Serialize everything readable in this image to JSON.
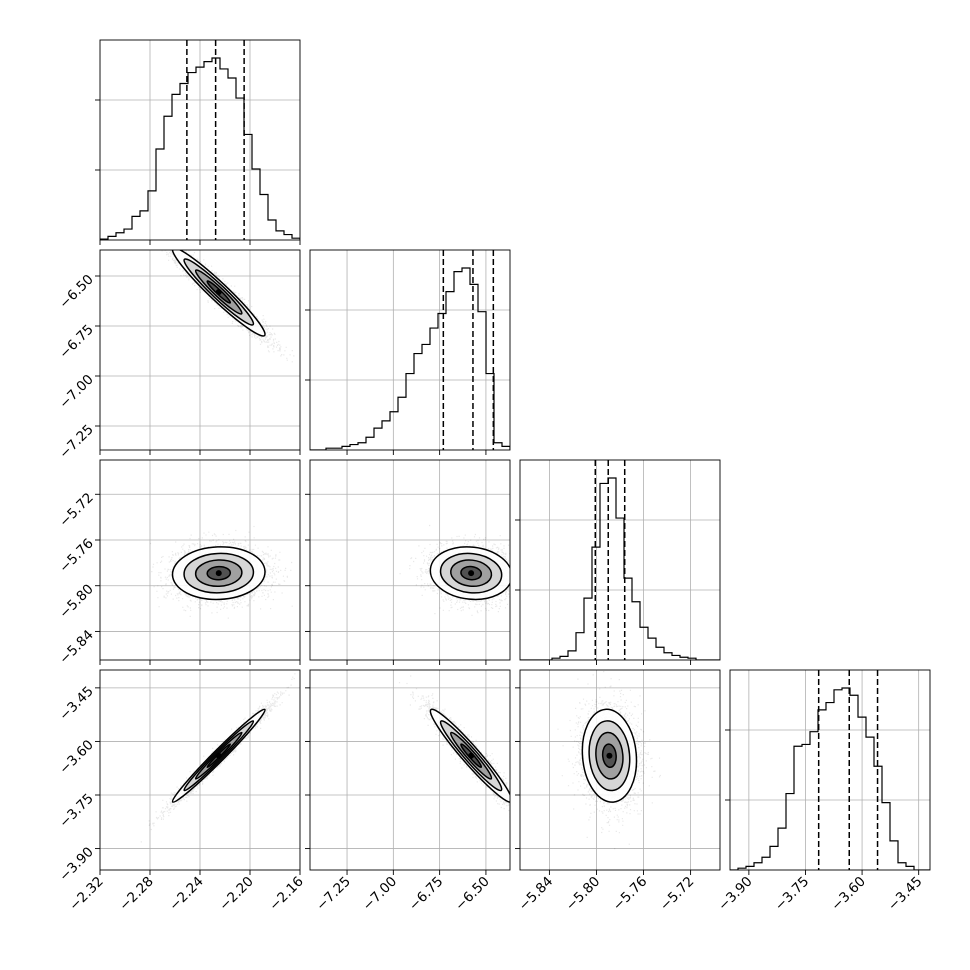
{
  "chart_data": {
    "type": "corner",
    "description_of_panels": "Lower-triangle corner plot of 4 parameters: 1-D histograms on diagonal with dashed quantile lines, 2-D scatter + density contours off-diagonal",
    "grid": true,
    "colors": {
      "line": "#000000",
      "grid": "#b0b0b0",
      "points": "#000000"
    },
    "parameters": [
      {
        "xlim": [
          -2.32,
          -2.16
        ],
        "ticks": [
          -2.32,
          -2.28,
          -2.24,
          -2.2,
          -2.16
        ],
        "tick_labels": [
          "−2.32",
          "−2.28",
          "−2.24",
          "−2.20",
          "−2.16"
        ],
        "mean": -2.225,
        "sd": 0.0185,
        "quantiles": [
          -2.2505,
          -2.2275,
          -2.2047
        ],
        "hist": [
          0.005,
          0.02,
          0.04,
          0.06,
          0.13,
          0.16,
          0.27,
          0.5,
          0.68,
          0.8,
          0.86,
          0.92,
          0.95,
          0.98,
          1.0,
          0.94,
          0.89,
          0.78,
          0.58,
          0.39,
          0.25,
          0.11,
          0.05,
          0.03,
          0.01
        ]
      },
      {
        "xlim": [
          -7.45,
          -6.37
        ],
        "ticks": [
          -7.25,
          -7.0,
          -6.75,
          -6.5
        ],
        "tick_labels": [
          "−7.25",
          "−7.00",
          "−6.75",
          "−6.50"
        ],
        "ylim": [
          -7.37,
          -6.37
        ],
        "yticks": [
          -7.25,
          -7.0,
          -6.75,
          -6.5
        ],
        "ytick_labels": [
          "−7.25",
          "−7.00",
          "−6.75",
          "−6.50"
        ],
        "mean": -6.58,
        "sd": 0.11,
        "quantiles": [
          -6.73,
          -6.57,
          -6.46
        ],
        "hist": [
          0.0,
          0.0,
          0.01,
          0.01,
          0.02,
          0.03,
          0.04,
          0.07,
          0.12,
          0.16,
          0.21,
          0.29,
          0.42,
          0.53,
          0.58,
          0.67,
          0.75,
          0.87,
          0.98,
          1.0,
          0.91,
          0.76,
          0.42,
          0.04,
          0.02
        ]
      },
      {
        "xlim": [
          -5.865,
          -5.695
        ],
        "ticks": [
          -5.84,
          -5.8,
          -5.76,
          -5.72
        ],
        "tick_labels": [
          "−5.84",
          "−5.80",
          "−5.76",
          "−5.72"
        ],
        "ylim": [
          -5.865,
          -5.69
        ],
        "yticks": [
          -5.84,
          -5.8,
          -5.76,
          -5.72
        ],
        "ytick_labels": [
          "−5.84",
          "−5.80",
          "−5.76",
          "−5.72"
        ],
        "mean": -5.789,
        "sd": 0.0115,
        "quantiles": [
          -5.801,
          -5.79,
          -5.776
        ],
        "hist": [
          0.0,
          0.0,
          0.0,
          0.0,
          0.01,
          0.02,
          0.05,
          0.15,
          0.34,
          0.62,
          0.97,
          1.0,
          0.78,
          0.45,
          0.32,
          0.18,
          0.12,
          0.07,
          0.04,
          0.025,
          0.015,
          0.01,
          0.0,
          0.0,
          0.0
        ]
      },
      {
        "xlim": [
          -3.95,
          -3.42
        ],
        "ticks": [
          -3.9,
          -3.75,
          -3.6,
          -3.45
        ],
        "tick_labels": [
          "−3.90",
          "−3.75",
          "−3.60",
          "−3.45"
        ],
        "ylim": [
          -3.96,
          -3.4
        ],
        "yticks": [
          -3.9,
          -3.75,
          -3.6,
          -3.45
        ],
        "ytick_labels": [
          "−3.90",
          "−3.75",
          "−3.60",
          "−3.45"
        ],
        "mean": -3.64,
        "sd": 0.065,
        "quantiles": [
          -3.715,
          -3.634,
          -3.559
        ],
        "hist": [
          0.0,
          0.01,
          0.02,
          0.04,
          0.07,
          0.13,
          0.23,
          0.42,
          0.68,
          0.69,
          0.76,
          0.88,
          0.92,
          0.99,
          1.0,
          0.96,
          0.84,
          0.73,
          0.57,
          0.37,
          0.16,
          0.04,
          0.02,
          0.0,
          0.0
        ]
      }
    ],
    "pairs": [
      {
        "x": 0,
        "y": 1,
        "corr": -0.96
      },
      {
        "x": 0,
        "y": 2,
        "corr": 0.05
      },
      {
        "x": 1,
        "y": 2,
        "corr": -0.1
      },
      {
        "x": 0,
        "y": 3,
        "corr": 0.985
      },
      {
        "x": 1,
        "y": 3,
        "corr": -0.96
      },
      {
        "x": 2,
        "y": 3,
        "corr": -0.1
      }
    ]
  }
}
